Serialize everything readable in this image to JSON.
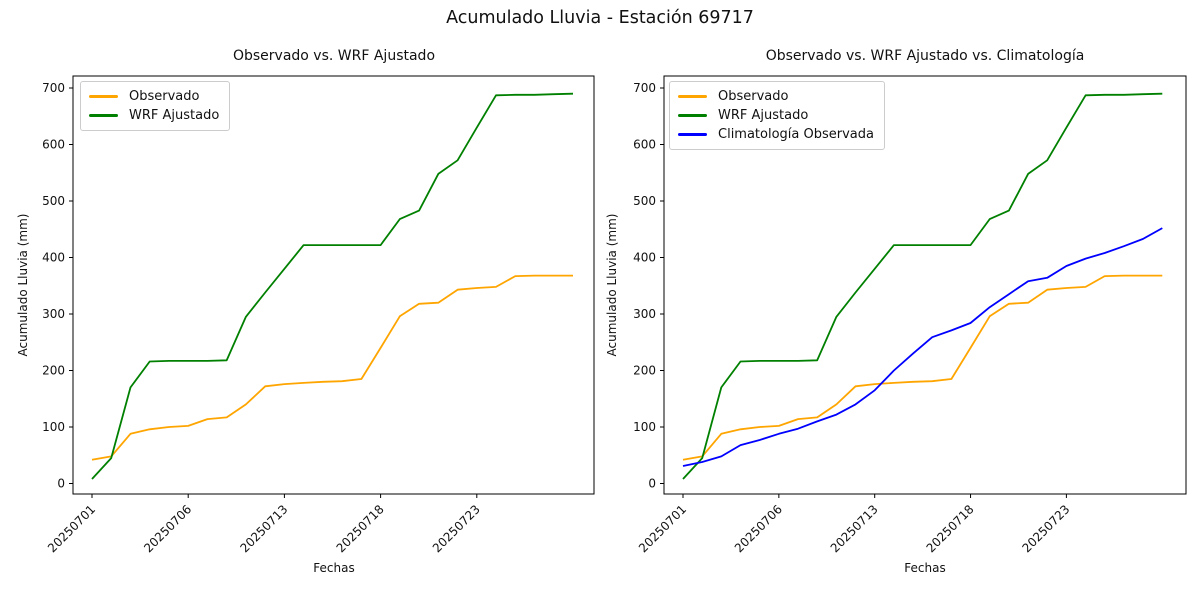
{
  "figure": {
    "title": "Acumulado Lluvia - Estación 69717"
  },
  "chart_data": [
    {
      "type": "line",
      "title": "Observado vs. WRF Ajustado",
      "xlabel": "Fechas",
      "ylabel": "Acumulado Lluvia (mm)",
      "x": [
        "20250701",
        "20250702",
        "20250703",
        "20250704",
        "20250705",
        "20250706",
        "20250707",
        "20250708",
        "20250710",
        "20250712",
        "20250713",
        "20250714",
        "20250715",
        "20250716",
        "20250717",
        "20250718",
        "20250719",
        "20250720",
        "20250721",
        "20250722",
        "20250723",
        "20250724",
        "20250725",
        "20250726",
        "20250727",
        "20250728"
      ],
      "xtick_labels": [
        "20250701",
        "20250706",
        "20250713",
        "20250718",
        "20250723"
      ],
      "xtick_indices": [
        0,
        5,
        10,
        15,
        20
      ],
      "yticks": [
        0,
        100,
        200,
        300,
        400,
        500,
        600,
        700
      ],
      "ylim": [
        -19,
        721
      ],
      "grid": false,
      "legend_position": "upper-left",
      "series": [
        {
          "name": "Observado",
          "color": "#FFA500",
          "values": [
            42,
            48,
            88,
            96,
            100,
            102,
            114,
            117,
            140,
            172,
            176,
            178,
            180,
            181,
            185,
            240,
            296,
            318,
            320,
            343,
            346,
            348,
            367,
            368,
            368,
            368
          ]
        },
        {
          "name": "WRF Ajustado",
          "color": "#008000",
          "values": [
            8,
            45,
            170,
            216,
            217,
            217,
            217,
            218,
            295,
            338,
            380,
            422,
            422,
            422,
            422,
            422,
            468,
            483,
            548,
            572,
            630,
            687,
            688,
            688,
            689,
            690
          ]
        }
      ]
    },
    {
      "type": "line",
      "title": "Observado vs. WRF Ajustado vs. Climatología",
      "xlabel": "Fechas",
      "ylabel": "Acumulado Lluvia (mm)",
      "x": [
        "20250701",
        "20250702",
        "20250703",
        "20250704",
        "20250705",
        "20250706",
        "20250707",
        "20250708",
        "20250710",
        "20250712",
        "20250713",
        "20250714",
        "20250715",
        "20250716",
        "20250717",
        "20250718",
        "20250719",
        "20250720",
        "20250721",
        "20250722",
        "20250723",
        "20250724",
        "20250725",
        "20250726",
        "20250727",
        "20250728"
      ],
      "xtick_labels": [
        "20250701",
        "20250706",
        "20250713",
        "20250718",
        "20250723"
      ],
      "xtick_indices": [
        0,
        5,
        10,
        15,
        20
      ],
      "yticks": [
        0,
        100,
        200,
        300,
        400,
        500,
        600,
        700
      ],
      "ylim": [
        -19,
        721
      ],
      "grid": false,
      "legend_position": "upper-left",
      "series": [
        {
          "name": "Observado",
          "color": "#FFA500",
          "values": [
            42,
            48,
            88,
            96,
            100,
            102,
            114,
            117,
            140,
            172,
            176,
            178,
            180,
            181,
            185,
            240,
            296,
            318,
            320,
            343,
            346,
            348,
            367,
            368,
            368,
            368
          ]
        },
        {
          "name": "WRF Ajustado",
          "color": "#008000",
          "values": [
            8,
            45,
            170,
            216,
            217,
            217,
            217,
            218,
            295,
            338,
            380,
            422,
            422,
            422,
            422,
            422,
            468,
            483,
            548,
            572,
            630,
            687,
            688,
            688,
            689,
            690
          ]
        },
        {
          "name": "Climatología Observada",
          "color": "#0000FF",
          "values": [
            31,
            38,
            48,
            68,
            77,
            88,
            97,
            110,
            122,
            140,
            165,
            200,
            230,
            259,
            271,
            284,
            312,
            335,
            358,
            364,
            385,
            398,
            408,
            420,
            433,
            452
          ]
        }
      ]
    }
  ]
}
